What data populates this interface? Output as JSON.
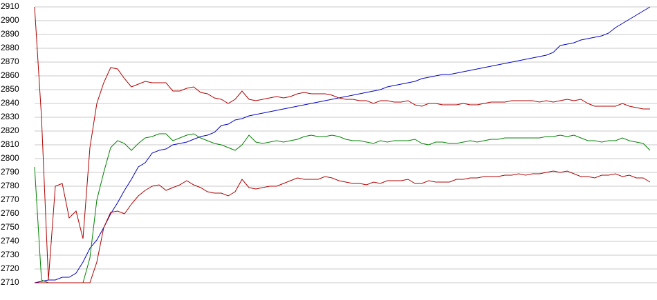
{
  "chart_data": {
    "type": "line",
    "categories": [
      null,
      null,
      null,
      null,
      null,
      null,
      null,
      null,
      null,
      null,
      null,
      null,
      null,
      null,
      null,
      null,
      null,
      null,
      null,
      null,
      null,
      null,
      null,
      null,
      null,
      null,
      null,
      null,
      null,
      null,
      null,
      null,
      null,
      null,
      null,
      null,
      null,
      null,
      null,
      null,
      null,
      null,
      null,
      null,
      null,
      null,
      null,
      null,
      null,
      null,
      null,
      null,
      null,
      null,
      null,
      null,
      null,
      null,
      null,
      null,
      null,
      null,
      null,
      null,
      null,
      null,
      null,
      null,
      null,
      null,
      null,
      null,
      null,
      null,
      null,
      null,
      null,
      null,
      null,
      null,
      null,
      null,
      null,
      null,
      null,
      null,
      null,
      null,
      null,
      null
    ],
    "ylim": [
      2710,
      2910
    ],
    "yticks": [
      2710,
      2720,
      2730,
      2740,
      2750,
      2760,
      2770,
      2780,
      2790,
      2800,
      2810,
      2820,
      2830,
      2840,
      2850,
      2860,
      2870,
      2880,
      2890,
      2900,
      2910
    ],
    "grid": true,
    "series": [
      {
        "color": "#0000c0",
        "values": [
          2710,
          2711,
          2712,
          2712,
          2714,
          2714,
          2717,
          2725,
          2735,
          2741,
          2750,
          2760,
          2768,
          2777,
          2785,
          2794,
          2797,
          2804,
          2806,
          2807,
          2810,
          2811,
          2812,
          2814,
          2816,
          2817,
          2819,
          2824,
          2825,
          2828,
          2829,
          2831,
          2832,
          2833,
          2834,
          2835,
          2836,
          2837,
          2838,
          2839,
          2840,
          2841,
          2842,
          2843,
          2844,
          2845,
          2846,
          2847,
          2848,
          2849,
          2850,
          2852,
          2853,
          2854,
          2855,
          2856,
          2858,
          2859,
          2860,
          2861,
          2861,
          2862,
          2863,
          2864,
          2865,
          2866,
          2867,
          2868,
          2869,
          2870,
          2871,
          2872,
          2873,
          2874,
          2875,
          2877,
          2882,
          2883,
          2884,
          2886,
          2887,
          2888,
          2889,
          2891,
          2895,
          2898,
          2901,
          2904,
          2907,
          2910
        ]
      },
      {
        "color": "#b00000",
        "values": [
          2910,
          2830,
          2712,
          2780,
          2782,
          2757,
          2762,
          2742,
          2808,
          2840,
          2855,
          2866,
          2865,
          2858,
          2852,
          2854,
          2856,
          2855,
          2855,
          2855,
          2849,
          2849,
          2851,
          2852,
          2848,
          2847,
          2844,
          2843,
          2840,
          2843,
          2849,
          2843,
          2842,
          2843,
          2844,
          2845,
          2844,
          2845,
          2847,
          2848,
          2847,
          2847,
          2847,
          2846,
          2844,
          2843,
          2843,
          2842,
          2842,
          2840,
          2842,
          2842,
          2841,
          2841,
          2842,
          2839,
          2838,
          2840,
          2840,
          2839,
          2839,
          2839,
          2840,
          2839,
          2839,
          2840,
          2841,
          2841,
          2841,
          2842,
          2842,
          2842,
          2842,
          2841,
          2842,
          2841,
          2842,
          2843,
          2842,
          2843,
          2840,
          2838,
          2838,
          2838,
          2838,
          2840,
          2838,
          2837,
          2836,
          2836
        ]
      },
      {
        "color": "#008000",
        "values": [
          2794,
          2712,
          2710,
          2710,
          2710,
          2710,
          2710,
          2710,
          2728,
          2770,
          2790,
          2808,
          2813,
          2811,
          2806,
          2811,
          2815,
          2816,
          2818,
          2818,
          2813,
          2815,
          2817,
          2818,
          2815,
          2813,
          2811,
          2810,
          2808,
          2806,
          2810,
          2817,
          2812,
          2811,
          2812,
          2813,
          2812,
          2813,
          2814,
          2816,
          2817,
          2816,
          2816,
          2817,
          2816,
          2814,
          2813,
          2813,
          2812,
          2811,
          2813,
          2812,
          2813,
          2813,
          2813,
          2814,
          2811,
          2810,
          2812,
          2812,
          2811,
          2811,
          2812,
          2813,
          2812,
          2813,
          2814,
          2814,
          2815,
          2815,
          2815,
          2815,
          2815,
          2815,
          2816,
          2816,
          2817,
          2816,
          2817,
          2815,
          2813,
          2813,
          2812,
          2813,
          2813,
          2815,
          2813,
          2812,
          2811,
          2806
        ]
      },
      {
        "color": "#b00000",
        "values": [
          2710,
          2710,
          2710,
          2710,
          2710,
          2710,
          2710,
          2710,
          2710,
          2725,
          2750,
          2761,
          2762,
          2760,
          2767,
          2773,
          2777,
          2780,
          2781,
          2777,
          2779,
          2781,
          2784,
          2781,
          2779,
          2776,
          2775,
          2775,
          2773,
          2776,
          2785,
          2779,
          2778,
          2779,
          2780,
          2780,
          2782,
          2784,
          2786,
          2785,
          2785,
          2785,
          2787,
          2786,
          2784,
          2783,
          2782,
          2782,
          2781,
          2783,
          2782,
          2784,
          2784,
          2784,
          2785,
          2782,
          2782,
          2784,
          2783,
          2783,
          2783,
          2785,
          2785,
          2786,
          2786,
          2787,
          2787,
          2787,
          2788,
          2788,
          2789,
          2788,
          2789,
          2789,
          2790,
          2791,
          2790,
          2791,
          2789,
          2787,
          2787,
          2786,
          2788,
          2788,
          2789,
          2787,
          2788,
          2786,
          2786,
          2783
        ]
      }
    ]
  }
}
